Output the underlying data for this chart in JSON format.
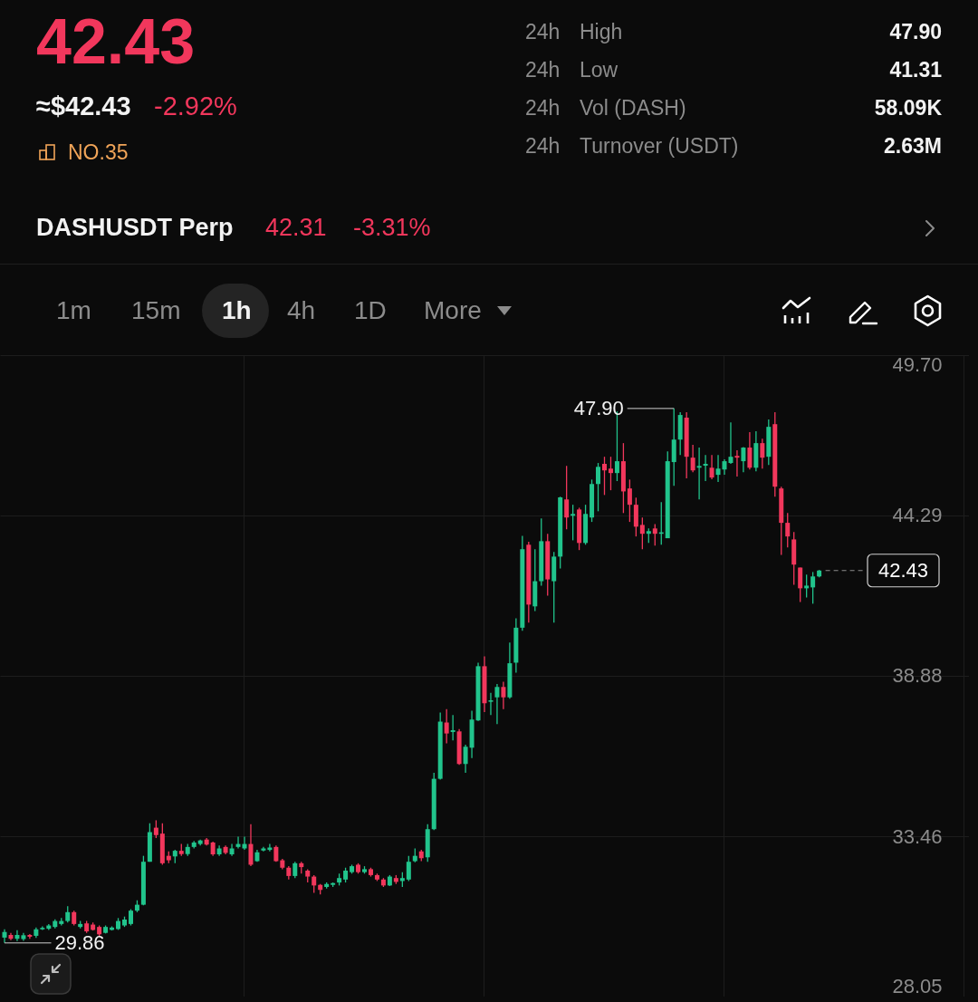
{
  "chart_data": {
    "type": "candlestick",
    "categories": [
      null,
      null,
      null,
      null,
      null,
      null,
      null,
      null,
      null,
      null,
      null,
      null,
      null,
      null,
      null,
      null,
      null,
      null,
      null,
      null,
      null,
      null,
      null,
      null,
      null,
      null,
      null,
      null,
      null,
      null,
      null,
      null,
      null,
      null,
      null,
      null,
      null,
      null,
      null,
      null,
      null,
      null,
      null,
      null,
      null,
      null,
      null,
      null,
      null,
      null,
      null,
      null,
      null,
      null,
      null,
      null,
      null,
      null,
      null,
      null,
      null,
      null,
      null,
      null,
      null,
      null,
      null,
      null,
      null,
      null,
      null,
      null,
      null,
      null,
      null,
      null,
      null,
      null,
      null,
      null,
      null,
      null,
      null,
      null,
      null,
      null,
      null,
      null,
      null,
      null,
      null,
      null,
      null,
      null,
      null,
      null,
      null,
      null,
      null,
      null,
      null,
      null,
      null,
      null,
      null,
      null,
      null,
      null,
      null,
      null,
      null,
      null,
      null,
      null,
      null,
      null,
      null,
      null,
      null,
      null,
      null,
      null,
      null,
      null,
      null,
      null,
      null,
      null,
      null,
      null,
      null,
      null,
      null,
      null,
      null,
      null,
      null,
      null,
      null,
      null,
      null,
      null,
      null,
      null,
      null,
      null,
      null,
      null,
      null,
      null,
      null,
      null,
      null
    ],
    "ohlc": [
      [
        30.04,
        30.32,
        29.86,
        30.23
      ],
      [
        30.13,
        30.2,
        29.95,
        30.0
      ],
      [
        30.0,
        30.29,
        29.92,
        30.13
      ],
      [
        29.99,
        30.2,
        29.93,
        30.12
      ],
      [
        30.13,
        30.16,
        30.0,
        30.07
      ],
      [
        30.1,
        30.38,
        30.03,
        30.32
      ],
      [
        30.32,
        30.42,
        30.3,
        30.37
      ],
      [
        30.34,
        30.5,
        30.3,
        30.45
      ],
      [
        30.4,
        30.66,
        30.35,
        30.6
      ],
      [
        30.5,
        30.7,
        30.45,
        30.6
      ],
      [
        30.6,
        31.1,
        30.55,
        30.9
      ],
      [
        30.9,
        30.95,
        30.45,
        30.5
      ],
      [
        30.4,
        30.6,
        30.35,
        30.5
      ],
      [
        30.52,
        30.6,
        30.2,
        30.25
      ],
      [
        30.48,
        30.55,
        30.28,
        30.3
      ],
      [
        30.4,
        30.45,
        30.1,
        30.15
      ],
      [
        30.2,
        30.45,
        30.18,
        30.4
      ],
      [
        30.3,
        30.42,
        30.28,
        30.38
      ],
      [
        30.33,
        30.7,
        30.3,
        30.6
      ],
      [
        30.45,
        30.75,
        30.4,
        30.65
      ],
      [
        30.5,
        31.0,
        30.45,
        30.95
      ],
      [
        30.95,
        31.3,
        30.9,
        31.15
      ],
      [
        31.15,
        32.8,
        31.13,
        32.6
      ],
      [
        32.6,
        33.9,
        32.6,
        33.6
      ],
      [
        33.75,
        34.0,
        33.4,
        33.5
      ],
      [
        33.55,
        33.9,
        32.5,
        32.55
      ],
      [
        32.8,
        32.95,
        32.55,
        32.65
      ],
      [
        32.78,
        33.0,
        32.55,
        32.97
      ],
      [
        32.97,
        33.2,
        32.8,
        32.86
      ],
      [
        32.86,
        33.2,
        32.8,
        33.1
      ],
      [
        33.1,
        33.3,
        33.05,
        33.25
      ],
      [
        33.2,
        33.35,
        33.15,
        33.32
      ],
      [
        33.35,
        33.4,
        33.15,
        33.18
      ],
      [
        33.25,
        33.28,
        32.8,
        32.85
      ],
      [
        32.85,
        33.15,
        32.8,
        33.05
      ],
      [
        33.1,
        33.15,
        32.85,
        32.9
      ],
      [
        32.85,
        33.2,
        32.8,
        33.05
      ],
      [
        33.1,
        33.45,
        33.05,
        33.2
      ],
      [
        33.05,
        33.45,
        33.0,
        33.2
      ],
      [
        33.2,
        33.87,
        32.45,
        32.5
      ],
      [
        32.62,
        33.0,
        32.6,
        32.92
      ],
      [
        32.98,
        33.1,
        32.95,
        33.05
      ],
      [
        33.0,
        33.2,
        32.95,
        33.08
      ],
      [
        33.1,
        33.15,
        32.6,
        32.62
      ],
      [
        32.65,
        32.7,
        32.35,
        32.4
      ],
      [
        32.4,
        32.45,
        32.0,
        32.12
      ],
      [
        32.12,
        32.6,
        32.05,
        32.55
      ],
      [
        32.55,
        32.6,
        32.2,
        32.42
      ],
      [
        32.3,
        32.35,
        31.9,
        32.1
      ],
      [
        32.1,
        32.15,
        31.55,
        31.8
      ],
      [
        31.82,
        31.85,
        31.5,
        31.65
      ],
      [
        31.75,
        31.9,
        31.7,
        31.85
      ],
      [
        31.82,
        31.9,
        31.75,
        31.88
      ],
      [
        31.9,
        32.2,
        31.8,
        32.05
      ],
      [
        32.0,
        32.4,
        31.9,
        32.3
      ],
      [
        32.25,
        32.5,
        32.2,
        32.45
      ],
      [
        32.5,
        32.55,
        32.2,
        32.25
      ],
      [
        32.25,
        32.45,
        32.2,
        32.35
      ],
      [
        32.35,
        32.4,
        32.1,
        32.15
      ],
      [
        32.15,
        32.2,
        31.95,
        32.0
      ],
      [
        32.0,
        32.05,
        31.75,
        31.8
      ],
      [
        31.8,
        32.15,
        31.78,
        32.1
      ],
      [
        32.05,
        32.15,
        31.85,
        31.92
      ],
      [
        31.95,
        32.25,
        31.75,
        32.05
      ],
      [
        32.0,
        32.8,
        31.95,
        32.6
      ],
      [
        32.62,
        33.05,
        32.58,
        32.8
      ],
      [
        32.95,
        33.0,
        32.62,
        32.72
      ],
      [
        32.75,
        33.87,
        32.6,
        33.7
      ],
      [
        33.7,
        35.6,
        33.67,
        35.4
      ],
      [
        35.4,
        37.64,
        35.37,
        37.33
      ],
      [
        37.3,
        37.75,
        36.6,
        36.93
      ],
      [
        36.98,
        37.55,
        36.7,
        37.04
      ],
      [
        37.0,
        37.08,
        35.87,
        35.9
      ],
      [
        35.9,
        36.55,
        35.6,
        36.48
      ],
      [
        36.45,
        37.7,
        36.1,
        37.4
      ],
      [
        37.37,
        39.32,
        37.35,
        39.2
      ],
      [
        39.2,
        39.53,
        37.65,
        37.95
      ],
      [
        38.0,
        38.3,
        37.55,
        38.05
      ],
      [
        38.15,
        38.6,
        37.25,
        38.5
      ],
      [
        38.5,
        38.68,
        37.75,
        38.15
      ],
      [
        38.15,
        40.0,
        38.1,
        39.3
      ],
      [
        39.32,
        40.82,
        38.98,
        40.5
      ],
      [
        40.5,
        43.6,
        40.4,
        43.15
      ],
      [
        43.3,
        43.4,
        40.67,
        41.28
      ],
      [
        41.22,
        43.15,
        41.06,
        42.07
      ],
      [
        42.07,
        44.19,
        41.92,
        43.42
      ],
      [
        43.42,
        43.67,
        41.58,
        42.13
      ],
      [
        42.07,
        43.06,
        40.67,
        42.9
      ],
      [
        42.9,
        44.92,
        42.5,
        44.9
      ],
      [
        44.83,
        45.96,
        43.82,
        44.22
      ],
      [
        44.28,
        44.65,
        43.45,
        44.34
      ],
      [
        44.49,
        44.55,
        43.12,
        43.36
      ],
      [
        43.36,
        44.65,
        43.3,
        44.34
      ],
      [
        44.22,
        45.5,
        44.07,
        45.35
      ],
      [
        45.35,
        46.06,
        44.43,
        45.93
      ],
      [
        46.03,
        46.27,
        44.98,
        45.81
      ],
      [
        45.87,
        46.27,
        45.14,
        45.72
      ],
      [
        45.72,
        47.8,
        45.45,
        46.12
      ],
      [
        46.12,
        46.73,
        44.37,
        45.1
      ],
      [
        45.2,
        45.5,
        44.07,
        44.65
      ],
      [
        44.65,
        44.89,
        43.58,
        43.91
      ],
      [
        43.97,
        44.22,
        43.15,
        43.67
      ],
      [
        43.67,
        43.85,
        43.36,
        43.76
      ],
      [
        43.85,
        44.0,
        43.27,
        43.67
      ],
      [
        43.67,
        44.74,
        43.3,
        43.72
      ],
      [
        43.52,
        46.45,
        43.52,
        46.12
      ],
      [
        46.09,
        47.9,
        45.29,
        46.85
      ],
      [
        46.85,
        47.77,
        46.33,
        47.68
      ],
      [
        47.59,
        47.77,
        45.54,
        46.27
      ],
      [
        46.24,
        46.67,
        45.75,
        45.81
      ],
      [
        45.9,
        46.58,
        44.83,
        45.96
      ],
      [
        45.97,
        46.33,
        45.45,
        46.03
      ],
      [
        45.9,
        46.33,
        45.51,
        45.57
      ],
      [
        45.66,
        46.33,
        45.42,
        45.87
      ],
      [
        45.84,
        46.18,
        45.66,
        46.12
      ],
      [
        46.06,
        47.43,
        46.03,
        46.27
      ],
      [
        46.3,
        46.49,
        45.6,
        46.24
      ],
      [
        46.12,
        46.6,
        45.75,
        46.58
      ],
      [
        46.58,
        47.1,
        45.84,
        45.9
      ],
      [
        45.9,
        47.13,
        45.78,
        46.73
      ],
      [
        46.73,
        46.88,
        45.87,
        46.24
      ],
      [
        46.27,
        47.53,
        45.99,
        47.28
      ],
      [
        47.37,
        47.77,
        44.92,
        45.26
      ],
      [
        45.2,
        45.26,
        42.96,
        44.04
      ],
      [
        44.04,
        44.37,
        43.21,
        43.58
      ],
      [
        43.48,
        43.73,
        41.95,
        42.63
      ],
      [
        42.53,
        42.53,
        41.37,
        41.83
      ],
      [
        41.83,
        42.29,
        41.52,
        41.92
      ],
      [
        41.86,
        42.38,
        41.31,
        42.23
      ],
      [
        42.23,
        42.45,
        42.2,
        42.43
      ],
      null,
      null,
      null,
      null,
      null,
      null,
      null,
      null,
      null,
      null,
      null,
      null,
      null,
      null,
      null,
      null,
      null,
      null,
      null,
      null,
      null,
      null,
      null
    ],
    "colors": [
      "#21c48c",
      "#f2375c",
      "#21c48c",
      "#21c48c",
      "#f2375c",
      "#21c48c",
      "#21c48c",
      "#21c48c",
      "#21c48c",
      "#21c48c",
      "#21c48c",
      "#f2375c",
      "#21c48c",
      "#f2375c",
      "#f2375c",
      "#f2375c",
      "#21c48c",
      "#21c48c",
      "#21c48c",
      "#21c48c",
      "#21c48c",
      "#21c48c",
      "#21c48c",
      "#21c48c",
      "#f2375c",
      "#f2375c",
      "#f2375c",
      "#21c48c",
      "#f2375c",
      "#21c48c",
      "#21c48c",
      "#21c48c",
      "#f2375c",
      "#f2375c",
      "#21c48c",
      "#f2375c",
      "#21c48c",
      "#21c48c",
      "#21c48c",
      "#f2375c",
      "#21c48c",
      "#21c48c",
      "#21c48c",
      "#f2375c",
      "#f2375c",
      "#f2375c",
      "#21c48c",
      "#f2375c",
      "#f2375c",
      "#f2375c",
      "#f2375c",
      "#21c48c",
      "#21c48c",
      "#21c48c",
      "#21c48c",
      "#21c48c",
      "#f2375c",
      "#21c48c",
      "#f2375c",
      "#f2375c",
      "#f2375c",
      "#21c48c",
      "#f2375c",
      "#21c48c",
      "#21c48c",
      "#21c48c",
      "#f2375c",
      "#21c48c",
      "#21c48c",
      "#21c48c",
      "#f2375c",
      "#21c48c",
      "#f2375c",
      "#21c48c",
      "#21c48c",
      "#21c48c",
      "#f2375c",
      "#21c48c",
      "#21c48c",
      "#f2375c",
      "#21c48c",
      "#21c48c",
      "#21c48c",
      "#f2375c",
      "#21c48c",
      "#21c48c",
      "#f2375c",
      "#21c48c",
      "#21c48c",
      "#f2375c",
      "#21c48c",
      "#f2375c",
      "#21c48c",
      "#21c48c",
      "#21c48c",
      "#f2375c",
      "#f2375c",
      "#21c48c",
      "#f2375c",
      "#f2375c",
      "#f2375c",
      "#f2375c",
      "#21c48c",
      "#f2375c",
      "#21c48c",
      "#21c48c",
      "#21c48c",
      "#21c48c",
      "#f2375c",
      "#f2375c",
      "#21c48c",
      "#21c48c",
      "#f2375c",
      "#21c48c",
      "#21c48c",
      "#21c48c",
      "#f2375c",
      "#21c48c",
      "#f2375c",
      "#21c48c",
      "#f2375c",
      "#21c48c",
      "#f2375c",
      "#f2375c",
      "#f2375c",
      "#f2375c",
      "#f2375c",
      "#21c48c",
      "#21c48c",
      "#21c48c",
      null,
      null,
      null,
      null,
      null,
      null,
      null,
      null,
      null,
      null,
      null,
      null,
      null,
      null,
      null,
      null,
      null,
      null,
      null,
      null,
      null,
      null,
      null
    ],
    "ylim": [
      28.05,
      49.7
    ],
    "yticks": [
      28.05,
      33.46,
      38.88,
      44.29,
      {
        "value": 49.7,
        "label": "49.70"
      }
    ],
    "grid": true,
    "tick_labels": "y",
    "ref_lines": [
      {
        "axis": "y",
        "value": 42.43,
        "label": "42.43",
        "line_style": "dashed",
        "color": "#8c8c8c"
      }
    ],
    "annotations": [
      "42.43",
      "≈$42.43",
      "-2.92%",
      "NO.35",
      "24h",
      "High",
      "47.90",
      "24h",
      "Low",
      "41.31",
      "24h",
      "Vol (DASH)",
      "58.09K",
      "24h",
      "Turnover (USDT)",
      "2.63M",
      "DASHUSDT Perp",
      "42.31",
      "-3.31%",
      "1m",
      "15m",
      "1h",
      "4h",
      "1D",
      "More",
      "47.90",
      "29.86"
    ]
  }
}
